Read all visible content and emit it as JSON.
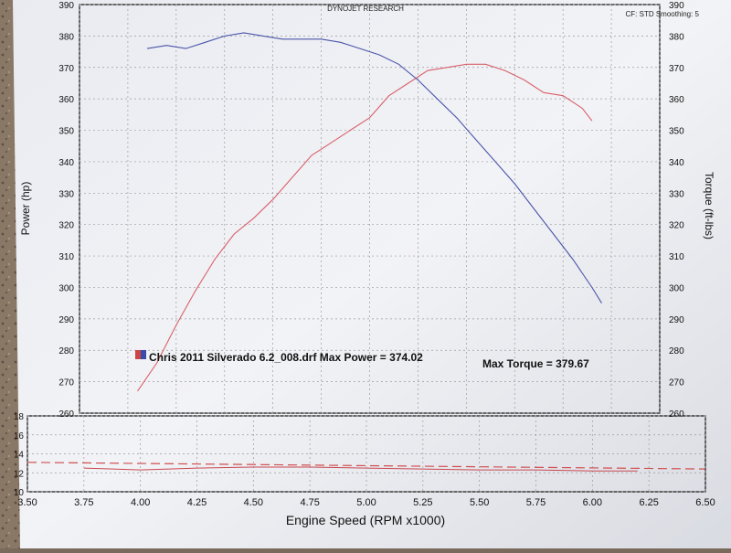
{
  "header": {
    "title": "DYNOJET RESEARCH",
    "settings": "CF: STD  Smoothing: 5"
  },
  "chart_data": [
    {
      "type": "line",
      "name": "power-torque",
      "xlabel": "Engine Speed (RPM x1000)",
      "ylabel_left": "Power (hp)",
      "ylabel_right": "Torque (ft-lbs)",
      "xlim": [
        3.5,
        6.5
      ],
      "ylim_left": [
        260,
        390
      ],
      "ylim_right": [
        260,
        390
      ],
      "x_ticks": [
        "3.50",
        "3.75",
        "4.00",
        "4.25",
        "4.50",
        "4.75",
        "5.00",
        "5.25",
        "5.50",
        "5.75",
        "6.00",
        "6.25",
        "6.50"
      ],
      "y_ticks_left": [
        "260",
        "270",
        "280",
        "290",
        "300",
        "310",
        "320",
        "330",
        "340",
        "350",
        "360",
        "370",
        "380",
        "390"
      ],
      "y_ticks_right": [
        "260",
        "270",
        "280",
        "290",
        "300",
        "310",
        "320",
        "330",
        "340",
        "350",
        "360",
        "370",
        "380",
        "390"
      ],
      "grid": true,
      "legend": {
        "text": "Chris 2011 Silverado 6.2_008.drf Max Power = 374.02",
        "max_torque": "Max Torque = 379.67",
        "swatch_colors": [
          "#cc4444",
          "#3a4aa8"
        ]
      },
      "series": [
        {
          "key": "power",
          "color": "#d8606a",
          "x": [
            3.8,
            3.9,
            4.0,
            4.1,
            4.2,
            4.3,
            4.4,
            4.5,
            4.6,
            4.7,
            4.8,
            4.9,
            5.0,
            5.1,
            5.2,
            5.3,
            5.4,
            5.5,
            5.6,
            5.7,
            5.8,
            5.9,
            6.0,
            6.1,
            6.15
          ],
          "values": [
            267,
            276,
            288,
            299,
            309,
            317,
            322,
            328,
            335,
            342,
            346,
            350,
            354,
            361,
            365,
            369,
            370,
            371,
            371,
            369,
            366,
            362,
            361,
            357,
            353
          ]
        },
        {
          "key": "torque",
          "color": "#4b55a8",
          "x": [
            3.85,
            3.95,
            4.05,
            4.15,
            4.25,
            4.35,
            4.45,
            4.55,
            4.65,
            4.75,
            4.85,
            4.95,
            5.05,
            5.15,
            5.25,
            5.35,
            5.45,
            5.55,
            5.65,
            5.75,
            5.85,
            5.95,
            6.05,
            6.15,
            6.2
          ],
          "values": [
            376,
            377,
            376,
            378,
            380,
            381,
            380,
            379,
            379,
            379,
            378,
            376,
            374,
            371,
            366,
            360,
            354,
            347,
            340,
            333,
            325,
            317,
            309,
            300,
            295
          ]
        }
      ]
    },
    {
      "type": "line",
      "name": "afr",
      "xlim": [
        3.5,
        6.5
      ],
      "ylim": [
        10,
        18
      ],
      "y_ticks": [
        "10",
        "12",
        "14",
        "16",
        "18"
      ],
      "grid": true,
      "series": [
        {
          "key": "afr",
          "color": "#c84850",
          "x": [
            3.75,
            4.0,
            4.25,
            4.5,
            4.75,
            5.0,
            5.25,
            5.5,
            5.75,
            6.0,
            6.2
          ],
          "values": [
            12.5,
            12.3,
            12.5,
            12.6,
            12.6,
            12.5,
            12.4,
            12.3,
            12.3,
            12.2,
            12.2
          ]
        },
        {
          "key": "target",
          "color": "#d05050",
          "dashed": true,
          "x": [
            3.5,
            6.5
          ],
          "values": [
            13.1,
            12.4
          ]
        }
      ]
    }
  ]
}
